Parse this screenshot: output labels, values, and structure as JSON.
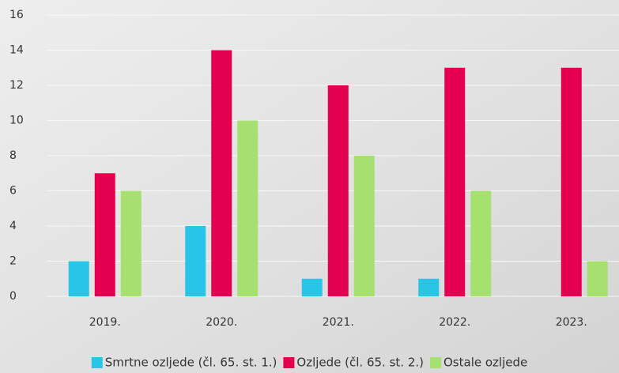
{
  "chart_data": {
    "type": "bar",
    "categories": [
      "2019.",
      "2020.",
      "2021.",
      "2022.",
      "2023."
    ],
    "series": [
      {
        "name": "Smrtne ozljede (čl. 65. st. 1.)",
        "color": "#29c5e6",
        "values": [
          2,
          4,
          1,
          1,
          0
        ]
      },
      {
        "name": "Ozljede (čl. 65. st. 2.)",
        "color": "#e5004f",
        "values": [
          7,
          14,
          12,
          13,
          13
        ]
      },
      {
        "name": "Ostale ozljede",
        "color": "#a6e06e",
        "values": [
          6,
          10,
          8,
          6,
          2
        ]
      }
    ],
    "ylim": [
      0,
      16
    ],
    "yticks": [
      0,
      2,
      4,
      6,
      8,
      10,
      12,
      14,
      16
    ],
    "grid": true,
    "legend": "bottom"
  }
}
